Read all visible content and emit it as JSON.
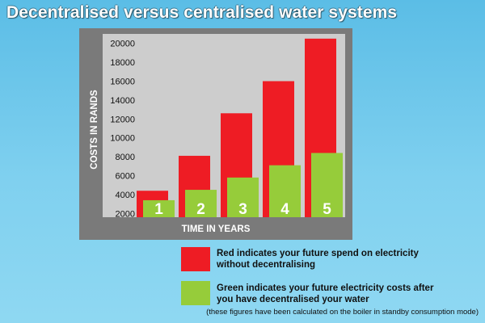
{
  "colors": {
    "background": "#6cc8ee",
    "panel": "#7a7a7a",
    "plot_area": "#cdcdcd",
    "future_without": "#ee1c24",
    "future_with": "#96cc3a",
    "axis_text": "#ffffff"
  },
  "chart_data": {
    "type": "bar",
    "title": "Decentralised versus centralised water systems",
    "xlabel": "TIME IN YEARS",
    "ylabel": "COSTS IN RANDS",
    "categories": [
      "1",
      "2",
      "3",
      "4",
      "5"
    ],
    "ylim": [
      1600,
      21000
    ],
    "yticks": [
      2000,
      4000,
      6000,
      8000,
      10000,
      12000,
      14000,
      16000,
      18000,
      20000
    ],
    "grid": false,
    "legend_position": "bottom-right",
    "series": [
      {
        "name": "Red indicates your future spend on electricity\nwithout decentralising",
        "color": "#ee1c24",
        "values": [
          4400,
          8100,
          12600,
          16000,
          20500
        ]
      },
      {
        "name": "Green indicates your future electricity costs after\nyou have decentralised your water",
        "color": "#96cc3a",
        "values": [
          3400,
          4500,
          5800,
          7100,
          8400
        ]
      }
    ],
    "footnote": "(these figures have been calculated on the boiler in standby consumption mode)"
  }
}
